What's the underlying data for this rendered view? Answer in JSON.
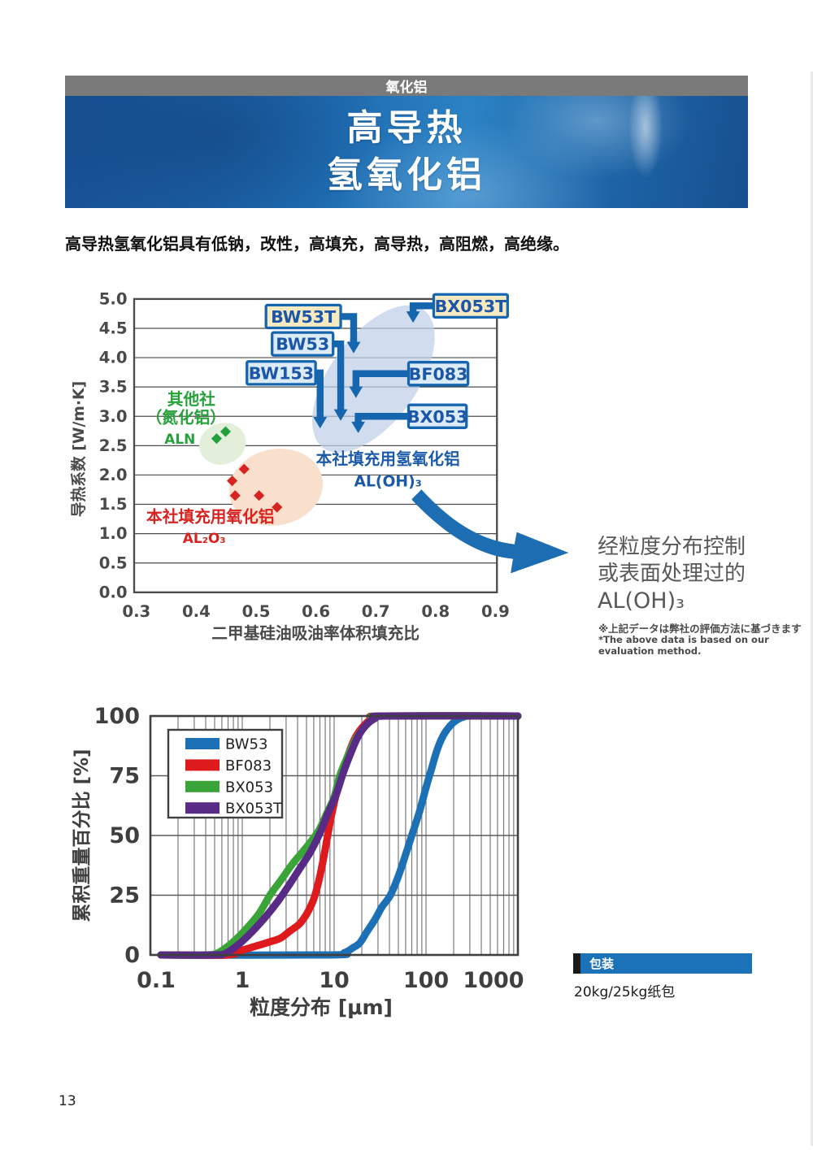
{
  "page": {
    "number": "13"
  },
  "header": {
    "category": "氧化铝",
    "title_line1": "高导热",
    "title_line2": "氢氧化铝"
  },
  "intro": "高导热氢氧化铝具有低钠，改性，高填充，高导热，高阻燃，高绝缘。",
  "chart_data": [
    {
      "type": "scatter",
      "xlabel": "二甲基硅油吸油率体积填充比",
      "ylabel": "导热系数 [W/m·K]",
      "xlim": [
        0.3,
        0.9
      ],
      "xticks": [
        0.3,
        0.4,
        0.5,
        0.6,
        0.7,
        0.8,
        0.9
      ],
      "ylim": [
        0,
        5
      ],
      "ytick_step": 0.5,
      "grid": "horizontal-only",
      "series": [
        {
          "name": "其他社（氮化铝）ALN",
          "color": "#22a03c",
          "marker": "diamond",
          "points": [
            [
              0.434,
              2.62
            ],
            [
              0.449,
              2.74
            ]
          ]
        },
        {
          "name": "本社填充用氧化铝 AL₂O₃",
          "color": "#d7231f",
          "marker": "diamond",
          "points": [
            [
              0.48,
              2.1
            ],
            [
              0.46,
              1.9
            ],
            [
              0.465,
              1.65
            ],
            [
              0.505,
              1.65
            ],
            [
              0.535,
              1.45
            ]
          ]
        }
      ],
      "products": [
        {
          "label": "BW53T",
          "x": 0.663,
          "y": 4.1,
          "box": "cream"
        },
        {
          "label": "BX053T",
          "x": 0.762,
          "y": 4.62,
          "box": "cream"
        },
        {
          "label": "BW53",
          "x": 0.641,
          "y": 2.95,
          "box": "blue"
        },
        {
          "label": "BW153",
          "x": 0.607,
          "y": 2.82,
          "box": "blue"
        },
        {
          "label": "BF083",
          "x": 0.667,
          "y": 3.34,
          "box": "blue"
        },
        {
          "label": "BX053",
          "x": 0.671,
          "y": 2.74,
          "box": "blue"
        }
      ],
      "annotations": {
        "other": {
          "line1": "其他社",
          "line2": "（氮化铝）",
          "sub": "ALN"
        },
        "hydroxide": {
          "line1": "本社填充用氢氧化铝",
          "formula": "AL(OH)₃"
        },
        "alumina": {
          "line1": "本社填充用氧化铝",
          "formula": "AL₂O₃"
        }
      }
    },
    {
      "type": "line",
      "xlabel": "粒度分布 [μm]",
      "ylabel": "累积重量百分比 [%]",
      "xscale": "log",
      "xlim": [
        0.1,
        1000
      ],
      "xticks": [
        0.1,
        1,
        10,
        100,
        1000
      ],
      "ylim": [
        0,
        100
      ],
      "yticks": [
        0,
        25,
        50,
        75,
        100
      ],
      "legend_position": "upper-left",
      "series": [
        {
          "name": "BW53",
          "color": "#1c70b6",
          "points": [
            [
              0.13,
              0
            ],
            [
              9,
              0
            ],
            [
              13,
              1
            ],
            [
              16,
              3
            ],
            [
              19,
              5
            ],
            [
              23,
              10
            ],
            [
              28,
              15
            ],
            [
              33,
              20
            ],
            [
              41,
              25
            ],
            [
              50,
              33
            ],
            [
              60,
              42
            ],
            [
              70,
              50
            ],
            [
              85,
              60
            ],
            [
              100,
              70
            ],
            [
              115,
              78
            ],
            [
              130,
              85
            ],
            [
              150,
              91
            ],
            [
              175,
              95
            ],
            [
              210,
              98
            ],
            [
              260,
              99.7
            ],
            [
              330,
              100
            ],
            [
              1000,
              100
            ]
          ]
        },
        {
          "name": "BF083",
          "color": "#df1a1d",
          "points": [
            [
              0.18,
              0
            ],
            [
              0.7,
              0
            ],
            [
              1,
              2
            ],
            [
              1.5,
              4
            ],
            [
              2,
              5.5
            ],
            [
              2.6,
              7
            ],
            [
              3.3,
              10
            ],
            [
              4.2,
              13
            ],
            [
              5,
              17
            ],
            [
              5.8,
              22
            ],
            [
              6.3,
              26
            ],
            [
              7,
              33
            ],
            [
              7.8,
              42
            ],
            [
              8.5,
              50
            ],
            [
              9.3,
              58
            ],
            [
              10.5,
              67
            ],
            [
              12,
              75
            ],
            [
              14,
              83
            ],
            [
              16.5,
              90
            ],
            [
              20,
              95
            ],
            [
              26,
              99
            ],
            [
              34,
              100
            ],
            [
              1000,
              100
            ]
          ]
        },
        {
          "name": "BX053",
          "color": "#3ba438",
          "points": [
            [
              0.13,
              0
            ],
            [
              0.4,
              0
            ],
            [
              0.55,
              1
            ],
            [
              0.77,
              5
            ],
            [
              1.05,
              10
            ],
            [
              1.5,
              17
            ],
            [
              2,
              25
            ],
            [
              2.6,
              31
            ],
            [
              3.5,
              38
            ],
            [
              4.5,
              43
            ],
            [
              6,
              49
            ],
            [
              7,
              53
            ],
            [
              8.5,
              60
            ],
            [
              10,
              66
            ],
            [
              11.5,
              75
            ],
            [
              14,
              83
            ],
            [
              17,
              90
            ],
            [
              21,
              95
            ],
            [
              27,
              99
            ],
            [
              35,
              100
            ],
            [
              1000,
              100
            ]
          ]
        },
        {
          "name": "BX053T",
          "color": "#582c86",
          "points": [
            [
              0.13,
              0
            ],
            [
              0.5,
              0
            ],
            [
              0.68,
              1
            ],
            [
              0.95,
              5
            ],
            [
              1.3,
              10
            ],
            [
              1.8,
              16
            ],
            [
              2.5,
              23
            ],
            [
              3.2,
              29
            ],
            [
              4.2,
              36
            ],
            [
              5.5,
              43
            ],
            [
              7,
              51
            ],
            [
              8.5,
              59
            ],
            [
              10.5,
              67
            ],
            [
              12.5,
              76
            ],
            [
              15,
              84
            ],
            [
              18,
              91
            ],
            [
              22,
              96
            ],
            [
              28,
              99
            ],
            [
              36,
              100
            ],
            [
              1000,
              100
            ]
          ]
        }
      ]
    }
  ],
  "arrow_note": {
    "line1": "经粒度分布控制",
    "line2": "或表面处理过的",
    "line3": "AL(OH)₃"
  },
  "footnotes": {
    "jp": "※上記データは弊社の評価方法に基づきます",
    "en": "*The above data is based on our evaluation method."
  },
  "packaging": {
    "heading": "包装",
    "value": "20kg/25kg纸包"
  },
  "colors": {
    "banner_blue": "#1e6bb0",
    "callout_border": "#1565af",
    "callout_text": "#1c56a7",
    "cream_fill": "#f7e9c0",
    "lightblue_fill": "#dcebf8",
    "axis_gray": "#4a4a4a"
  }
}
